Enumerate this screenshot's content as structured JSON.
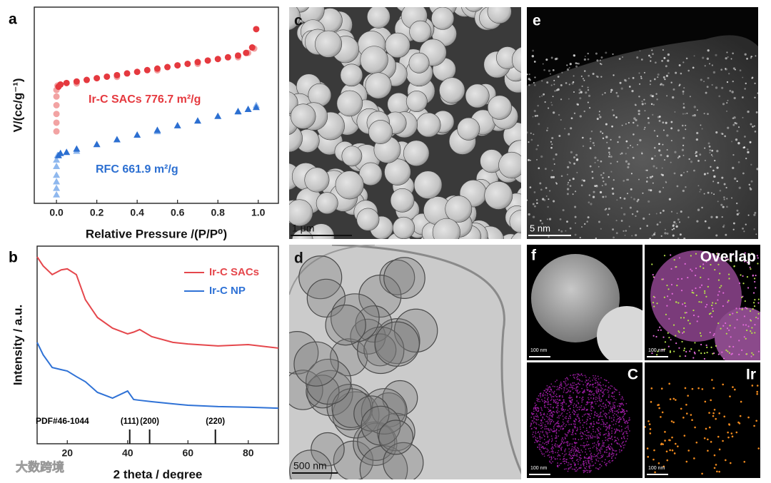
{
  "chart_data": [
    {
      "type": "scatter",
      "letter": "a",
      "ylabel": "V/(cc/g⁻¹)",
      "xlabel": "Relative Pressure /(P/P⁰)",
      "xlim": [
        -0.11,
        1.1
      ],
      "ylim": [
        10,
        100
      ],
      "xticks": [
        {
          "value": 0,
          "label": "0.0"
        },
        {
          "value": 0.2,
          "label": "0.2"
        },
        {
          "value": 0.4,
          "label": "0.4"
        },
        {
          "value": 0.6,
          "label": "0.6"
        },
        {
          "value": 0.8,
          "label": "0.8"
        },
        {
          "value": 1,
          "label": "1.0"
        }
      ],
      "annotations": [
        {
          "text": "Ir-C SACs 776.7 m²/g",
          "color": "#e5393f"
        },
        {
          "text": "RFC 661.9 m²/g",
          "color": "#2c6fd1"
        }
      ],
      "series": [
        {
          "color": "#f2a3a3",
          "marker": "circle",
          "x": [
            0,
            0,
            0,
            0,
            0,
            0,
            0.005,
            0.1,
            0.3,
            0.5,
            0.7,
            0.9,
            0.95,
            0.98
          ],
          "values": [
            43,
            47,
            51,
            55,
            59,
            62,
            64,
            65,
            68,
            71,
            74,
            77,
            79,
            81
          ]
        },
        {
          "color": "#e5393f",
          "marker": "circle",
          "x": [
            0.01,
            0.02,
            0.05,
            0.1,
            0.15,
            0.2,
            0.25,
            0.3,
            0.35,
            0.4,
            0.45,
            0.5,
            0.55,
            0.6,
            0.65,
            0.7,
            0.75,
            0.8,
            0.85,
            0.9,
            0.94,
            0.97,
            0.99
          ],
          "values": [
            63.5,
            64.5,
            65.2,
            65.9,
            66.6,
            67.4,
            68.1,
            68.8,
            69.6,
            70.3,
            71.1,
            71.8,
            72.5,
            73.3,
            74,
            74.8,
            75.5,
            76.2,
            77,
            77.8,
            79,
            81.5,
            89.9
          ]
        },
        {
          "color": "#8fb8ee",
          "marker": "triangle",
          "x": [
            0,
            0,
            0,
            0,
            0,
            0,
            0.005,
            0.1,
            0.5,
            0.9,
            0.99
          ],
          "values": [
            14,
            17,
            20,
            23,
            27,
            30,
            32,
            34,
            43,
            52,
            55
          ]
        },
        {
          "color": "#2c6fd1",
          "marker": "triangle",
          "x": [
            0.01,
            0.02,
            0.05,
            0.1,
            0.2,
            0.3,
            0.4,
            0.5,
            0.6,
            0.7,
            0.8,
            0.9,
            0.95,
            0.99
          ],
          "values": [
            32,
            33,
            33.5,
            35,
            37.1,
            39.3,
            41.4,
            43.6,
            45.7,
            47.9,
            50,
            52.2,
            53.2,
            54.1
          ]
        }
      ]
    },
    {
      "type": "line",
      "letter": "b",
      "ylabel": "Intensity / a.u.",
      "xlabel": "2 theta / degree",
      "xlim": [
        10,
        90
      ],
      "ylim": [
        0,
        100
      ],
      "xticks": [
        20,
        40,
        60,
        80
      ],
      "legend": "upper right",
      "x": [
        10,
        12,
        15,
        18,
        20,
        23,
        26,
        30,
        35,
        40,
        42,
        44,
        48,
        55,
        60,
        70,
        80,
        90
      ],
      "series": [
        {
          "name": "Ir-C SACs",
          "color": "#e5474c",
          "values": [
            94.6,
            90,
            85.6,
            88,
            88.5,
            85.6,
            72.9,
            63.9,
            58.5,
            55.6,
            56.5,
            57.8,
            54.2,
            51.3,
            50.5,
            49.5,
            50.2,
            48.4
          ]
        },
        {
          "name": "Ir-C NP",
          "color": "#2f72d6",
          "values": [
            51.3,
            45,
            38.6,
            37.5,
            36.8,
            34,
            31.4,
            26,
            23.1,
            26.7,
            22.4,
            22,
            21.3,
            20.2,
            19.5,
            18.8,
            18.5,
            18
          ]
        }
      ],
      "reference": {
        "name": "PDF#46-1044",
        "peaks": [
          40.7,
          47.3,
          69.1
        ],
        "peak_labels": [
          "(111)",
          "(200)",
          "(220)"
        ]
      }
    }
  ],
  "images": [
    {
      "letter": "c",
      "scale_bar": "1 μm"
    },
    {
      "letter": "d",
      "scale_bar": "500 nm"
    },
    {
      "letter": "e",
      "scale_bar": "5 nm"
    },
    {
      "letter": "f",
      "tiles": [
        {
          "scale_bar": "100 nm"
        },
        {
          "label": "Overlap",
          "scale_bar": "100 nm"
        },
        {
          "label": "C",
          "scale_bar": "100 nm"
        },
        {
          "label": "Ir",
          "scale_bar": "100 nm"
        }
      ]
    }
  ],
  "watermark": "大数跨境"
}
